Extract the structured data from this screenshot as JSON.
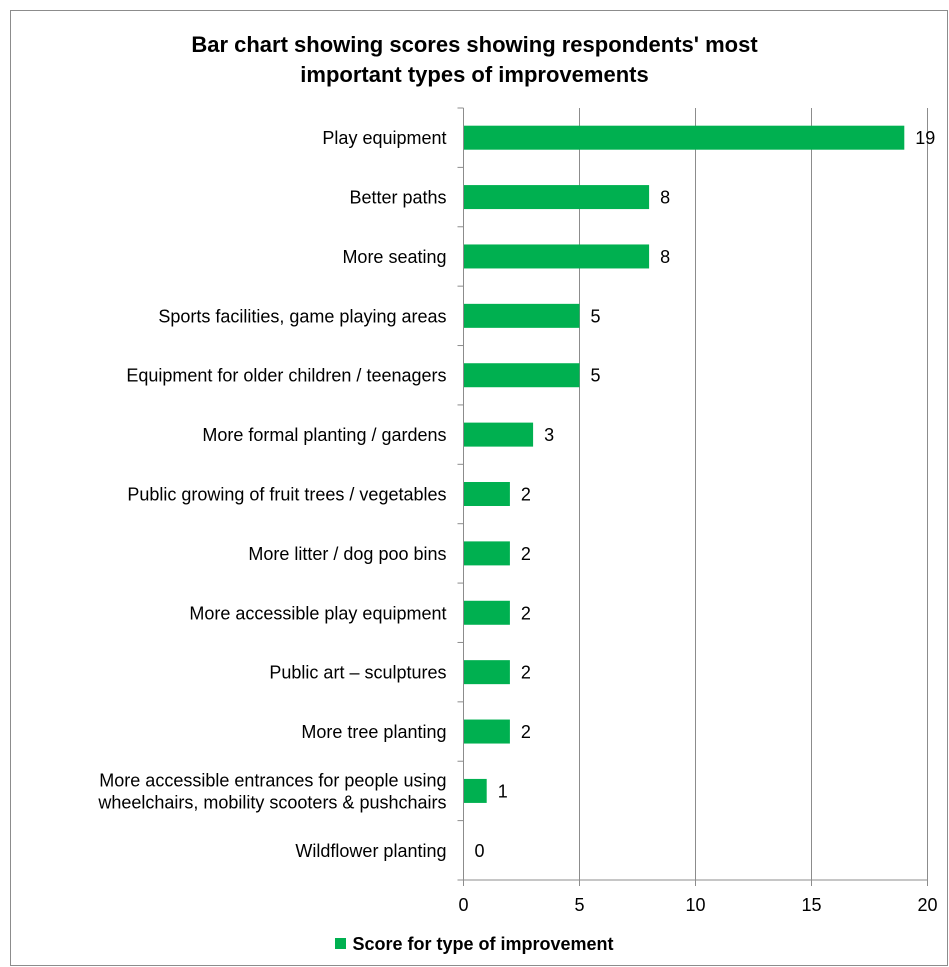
{
  "chart_data": {
    "type": "bar",
    "orientation": "horizontal",
    "title_lines": [
      "Bar chart showing scores showing respondents' most",
      "important types of improvements"
    ],
    "categories": [
      [
        "Play equipment"
      ],
      [
        "Better paths"
      ],
      [
        "More seating"
      ],
      [
        "Sports facilities, game playing areas"
      ],
      [
        "Equipment for older children / teenagers"
      ],
      [
        "More formal planting / gardens"
      ],
      [
        "Public growing of fruit trees / vegetables"
      ],
      [
        "More litter / dog poo bins"
      ],
      [
        "More accessible play equipment"
      ],
      [
        "Public art – sculptures"
      ],
      [
        "More tree planting"
      ],
      [
        "More accessible entrances for people using",
        "wheelchairs, mobility scooters & pushchairs"
      ],
      [
        "Wildflower planting"
      ]
    ],
    "series": [
      {
        "name": "Score for type of improvement",
        "values": [
          19,
          8,
          8,
          5,
          5,
          3,
          2,
          2,
          2,
          2,
          2,
          1,
          0
        ],
        "color": "#00b050"
      }
    ],
    "data_labels": [
      "19",
      "8",
      "8",
      "5",
      "5",
      "3",
      "2",
      "2",
      "2",
      "2",
      "2",
      "1",
      "0"
    ],
    "xlim": [
      0,
      20
    ],
    "x_ticks": [
      0,
      5,
      10,
      15,
      20
    ],
    "gridlines": "vertical",
    "gridline_color": "#8c8c8c",
    "legend_position": "bottom"
  }
}
